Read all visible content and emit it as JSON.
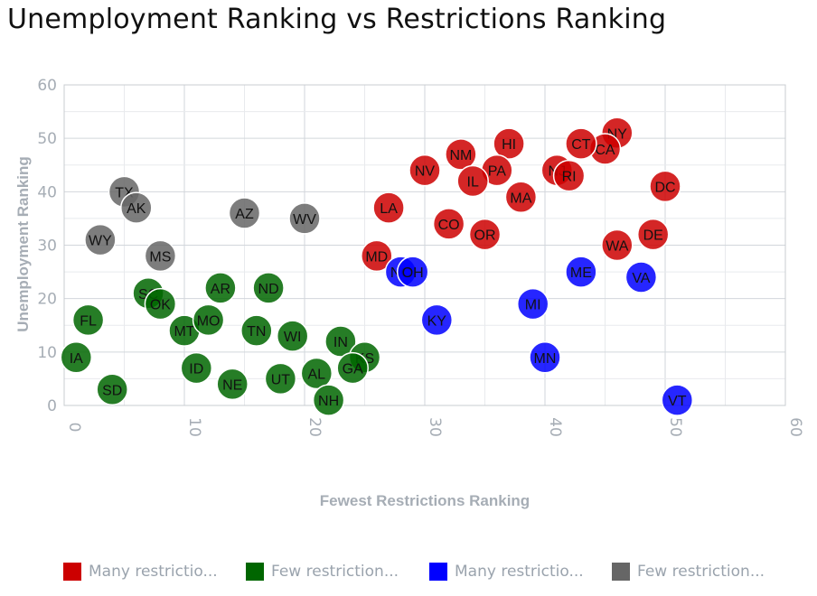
{
  "chart_data": {
    "type": "scatter",
    "title": "Unemployment Ranking vs Restrictions Ranking",
    "xlabel": "Fewest Restrictions Ranking",
    "ylabel": "Unemployment Ranking",
    "xlim": [
      0,
      60
    ],
    "ylim": [
      0,
      60
    ],
    "x_ticks": [
      "0",
      "10",
      "20",
      "30",
      "40",
      "50",
      "60"
    ],
    "y_ticks": [
      "0",
      "10",
      "20",
      "30",
      "40",
      "50",
      "60"
    ],
    "grid": true,
    "legend_position": "bottom",
    "series": [
      {
        "name": "Many restrictio...",
        "color": "#cc0000",
        "points": [
          {
            "label": "NY",
            "x": 46,
            "y": 51
          },
          {
            "label": "CA",
            "x": 45,
            "y": 48
          },
          {
            "label": "CT",
            "x": 43,
            "y": 49
          },
          {
            "label": "HI",
            "x": 37,
            "y": 49
          },
          {
            "label": "NM",
            "x": 33,
            "y": 47
          },
          {
            "label": "PA",
            "x": 36,
            "y": 44
          },
          {
            "label": "NV",
            "x": 30,
            "y": 44
          },
          {
            "label": "IL",
            "x": 34,
            "y": 42
          },
          {
            "label": "NJ",
            "x": 41,
            "y": 44
          },
          {
            "label": "RI",
            "x": 42,
            "y": 43
          },
          {
            "label": "MA",
            "x": 38,
            "y": 39
          },
          {
            "label": "DC",
            "x": 50,
            "y": 41
          },
          {
            "label": "LA",
            "x": 27,
            "y": 37
          },
          {
            "label": "CO",
            "x": 32,
            "y": 34
          },
          {
            "label": "OR",
            "x": 35,
            "y": 32
          },
          {
            "label": "DE",
            "x": 49,
            "y": 32
          },
          {
            "label": "WA",
            "x": 46,
            "y": 30
          },
          {
            "label": "MD",
            "x": 26,
            "y": 28
          }
        ]
      },
      {
        "name": "Few restriction...",
        "color": "#006600",
        "points": [
          {
            "label": "IA",
            "x": 1,
            "y": 9
          },
          {
            "label": "FL",
            "x": 2,
            "y": 16
          },
          {
            "label": "SD",
            "x": 4,
            "y": 3
          },
          {
            "label": "SC",
            "x": 7,
            "y": 21
          },
          {
            "label": "OK",
            "x": 8,
            "y": 19
          },
          {
            "label": "MT",
            "x": 10,
            "y": 14
          },
          {
            "label": "ID",
            "x": 11,
            "y": 7
          },
          {
            "label": "MO",
            "x": 12,
            "y": 16
          },
          {
            "label": "AR",
            "x": 13,
            "y": 22
          },
          {
            "label": "NE",
            "x": 14,
            "y": 4
          },
          {
            "label": "TN",
            "x": 16,
            "y": 14
          },
          {
            "label": "ND",
            "x": 17,
            "y": 22
          },
          {
            "label": "UT",
            "x": 18,
            "y": 5
          },
          {
            "label": "WI",
            "x": 19,
            "y": 13
          },
          {
            "label": "AL",
            "x": 21,
            "y": 6
          },
          {
            "label": "NH",
            "x": 22,
            "y": 1
          },
          {
            "label": "IN",
            "x": 23,
            "y": 12
          },
          {
            "label": "KS",
            "x": 25,
            "y": 9
          },
          {
            "label": "GA",
            "x": 24,
            "y": 7
          }
        ]
      },
      {
        "name": "Many restrictio...",
        "color": "#0000ff",
        "points": [
          {
            "label": "NC",
            "x": 28,
            "y": 25
          },
          {
            "label": "OH",
            "x": 29,
            "y": 25
          },
          {
            "label": "KY",
            "x": 31,
            "y": 16
          },
          {
            "label": "MI",
            "x": 39,
            "y": 19
          },
          {
            "label": "MN",
            "x": 40,
            "y": 9
          },
          {
            "label": "ME",
            "x": 43,
            "y": 25
          },
          {
            "label": "VA",
            "x": 48,
            "y": 24
          },
          {
            "label": "VT",
            "x": 51,
            "y": 1
          }
        ]
      },
      {
        "name": "Few restriction...",
        "color": "#666666",
        "points": [
          {
            "label": "WY",
            "x": 3,
            "y": 31
          },
          {
            "label": "TX",
            "x": 5,
            "y": 40
          },
          {
            "label": "AK",
            "x": 6,
            "y": 37
          },
          {
            "label": "MS",
            "x": 8,
            "y": 28
          },
          {
            "label": "AZ",
            "x": 15,
            "y": 36
          },
          {
            "label": "WV",
            "x": 20,
            "y": 35
          }
        ]
      }
    ]
  }
}
